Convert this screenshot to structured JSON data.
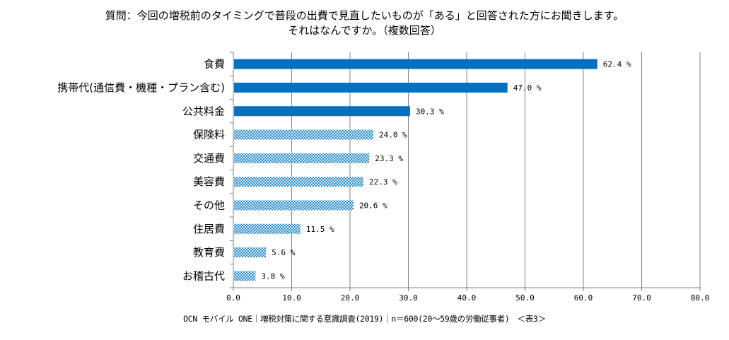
{
  "chart_data": {
    "type": "bar",
    "orientation": "horizontal",
    "title": "質問：今回の増税前のタイミングで普段の出費で見直したいものが「ある」と回答された方にお聞きします。",
    "subtitle": "それはなんですか。（複数回答）",
    "categories": [
      "食費",
      "携帯代(通信費・機種・プラン含む)",
      "公共料金",
      "保険料",
      "交通費",
      "美容費",
      "その他",
      "住居費",
      "教育費",
      "お稽古代"
    ],
    "values": [
      62.4,
      47.0,
      30.3,
      24.0,
      23.3,
      22.3,
      20.6,
      11.5,
      5.6,
      3.8
    ],
    "value_labels": [
      "62.4 %",
      "47.0 %",
      "30.3 %",
      "24.0 %",
      "23.3 %",
      "22.3 %",
      "20.6 %",
      "11.5 %",
      "5.6 %",
      "3.8 %"
    ],
    "highlight_top_n": 3,
    "xlim": [
      0,
      80
    ],
    "x_ticks": [
      "0.0",
      "10.0",
      "20.0",
      "30.0",
      "40.0",
      "50.0",
      "60.0",
      "70.0",
      "80.0"
    ],
    "x_tick_values": [
      0,
      10,
      20,
      30,
      40,
      50,
      60,
      70,
      80
    ],
    "xlabel": "",
    "ylabel": "",
    "grid": "vertical",
    "legend": "none",
    "colors": {
      "highlight": "#0070c0",
      "pattern_fg": "#2e8bc7",
      "pattern_bg": "#d6ecf7",
      "grid": "#808080",
      "axis": "#808080"
    }
  },
  "footer": "OCN モバイル ONE｜増税対策に関する意識調査(2019)｜n＝600(20～59歳の労働従事者)　＜表3＞"
}
